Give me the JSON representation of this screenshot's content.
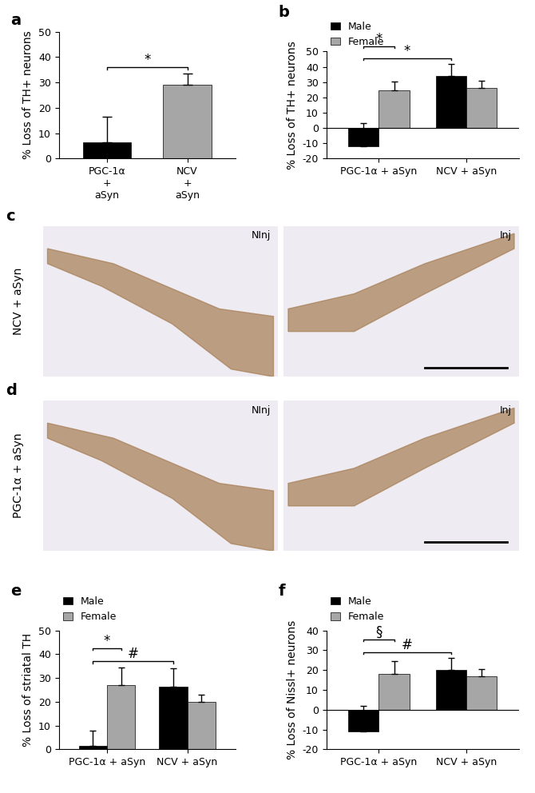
{
  "chart_data": [
    {
      "type": "bar",
      "panel": "a",
      "ylabel": "% Loss of TH+ neurons",
      "categories": [
        "PGC-1α\n+\naSyn",
        "NCV\n+\naSyn"
      ],
      "values": [
        6.5,
        29
      ],
      "errors": [
        10,
        4.5
      ],
      "colors": [
        "#000000",
        "#a6a6a6"
      ],
      "ylim": [
        0,
        50
      ],
      "yticks": [
        0,
        10,
        20,
        30,
        40,
        50
      ],
      "annotations": [
        {
          "text": "*",
          "from": [
            0,
            0
          ],
          "to": [
            0,
            1
          ]
        }
      ]
    },
    {
      "type": "grouped_bar",
      "panel": "b",
      "ylabel": "% Loss of TH+ neurons",
      "categories": [
        "PGC-1α + aSyn",
        "NCV + aSyn"
      ],
      "series": [
        {
          "name": "Male",
          "color": "#000000",
          "values": [
            -12,
            34
          ],
          "errors": [
            15,
            8
          ]
        },
        {
          "name": "Female",
          "color": "#a6a6a6",
          "values": [
            24.5,
            26
          ],
          "errors": [
            6,
            5
          ]
        }
      ],
      "ylim": [
        -20,
        50
      ],
      "yticks": [
        -20,
        -10,
        0,
        10,
        20,
        30,
        40,
        50
      ],
      "legend": "upper left",
      "annotations": [
        {
          "text": "*",
          "from": [
            0,
            0
          ],
          "to": [
            1,
            0
          ]
        },
        {
          "text": "*",
          "from": [
            0,
            0
          ],
          "to": [
            0,
            1
          ]
        }
      ]
    },
    {
      "type": "image",
      "panel": "c",
      "row_label": "NCV + aSyn",
      "images": [
        "NInj",
        "Inj"
      ]
    },
    {
      "type": "image",
      "panel": "d",
      "row_label": "PGC-1α + aSyn",
      "images": [
        "NInj",
        "Inj"
      ]
    },
    {
      "type": "grouped_bar",
      "panel": "e",
      "ylabel": "% Loss of striatal TH",
      "categories": [
        "PGC-1α + aSyn",
        "NCV + aSyn"
      ],
      "series": [
        {
          "name": "Male",
          "color": "#000000",
          "values": [
            1.5,
            26.5
          ],
          "errors": [
            6.5,
            7.5
          ]
        },
        {
          "name": "Female",
          "color": "#a6a6a6",
          "values": [
            27,
            20
          ],
          "errors": [
            7.5,
            3
          ]
        }
      ],
      "ylim": [
        0,
        50
      ],
      "yticks": [
        0,
        10,
        20,
        30,
        40,
        50
      ],
      "legend": "upper left",
      "annotations": [
        {
          "text": "#",
          "from": [
            0,
            0
          ],
          "to": [
            1,
            0
          ]
        },
        {
          "text": "*",
          "from": [
            0,
            0
          ],
          "to": [
            0,
            1
          ]
        }
      ]
    },
    {
      "type": "grouped_bar",
      "panel": "f",
      "ylabel": "% Loss of Nissl+ neurons",
      "categories": [
        "PGC-1α + aSyn",
        "NCV + aSyn"
      ],
      "series": [
        {
          "name": "Male",
          "color": "#000000",
          "values": [
            -11,
            20
          ],
          "errors": [
            13,
            6
          ]
        },
        {
          "name": "Female",
          "color": "#a6a6a6",
          "values": [
            18,
            17
          ],
          "errors": [
            6.5,
            3.5
          ]
        }
      ],
      "ylim": [
        -20,
        40
      ],
      "yticks": [
        -20,
        -10,
        0,
        10,
        20,
        30,
        40
      ],
      "legend": "upper left",
      "annotations": [
        {
          "text": "#",
          "from": [
            0,
            0
          ],
          "to": [
            1,
            0
          ]
        },
        {
          "text": "§",
          "from": [
            0,
            0
          ],
          "to": [
            0,
            1
          ]
        }
      ]
    }
  ]
}
